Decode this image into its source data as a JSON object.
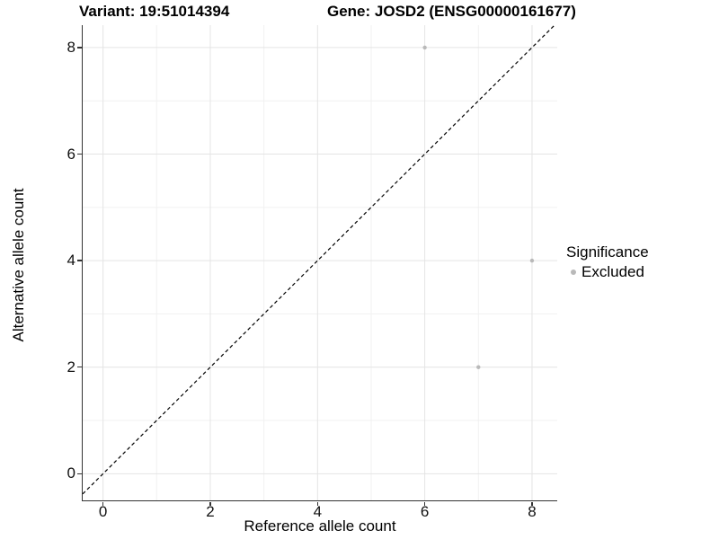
{
  "titles": {
    "left": "Variant: 19:51014394",
    "right": "Gene: JOSD2 (ENSG00000161677)"
  },
  "legend": {
    "title": "Significance",
    "entries": [
      {
        "label": "Excluded",
        "color": "#b9b9b9"
      }
    ]
  },
  "chart_data": {
    "type": "scatter",
    "title": "Variant: 19:51014394 | Gene: JOSD2 (ENSG00000161677)",
    "xlabel": "Reference allele count",
    "ylabel": "Alternative allele count",
    "xlim": [
      -0.38,
      8.47
    ],
    "ylim": [
      -0.5,
      8.42
    ],
    "x_ticks": [
      0,
      2,
      4,
      6,
      8
    ],
    "y_ticks": [
      0,
      2,
      4,
      6,
      8
    ],
    "x_minor_ticks": [
      1,
      3,
      5,
      7
    ],
    "y_minor_ticks": [
      1,
      3,
      5,
      7
    ],
    "grid": "major+minor",
    "legend_position": "right",
    "series": [
      {
        "name": "Excluded",
        "color": "#b9b9b9",
        "point_radius": 2.2,
        "points": [
          {
            "x": 6,
            "y": 8
          },
          {
            "x": 8,
            "y": 4
          },
          {
            "x": 7,
            "y": 2
          }
        ]
      }
    ],
    "reference_line": {
      "kind": "identity y=x",
      "style": "dashed",
      "color": "#000000"
    }
  },
  "colors": {
    "background": "#ffffff",
    "grid_major": "#e4e4e4",
    "grid_minor": "#f1f1f1",
    "axis_line": "#333333",
    "tick_mark": "#333333",
    "point": "#b9b9b9",
    "reference_line": "#000000"
  }
}
